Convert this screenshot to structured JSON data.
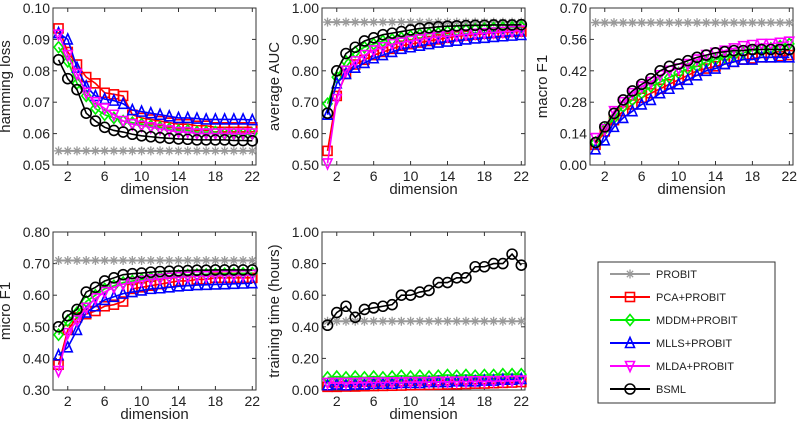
{
  "chart_data": {
    "type": "line",
    "legend": {
      "placement": "bottom-right",
      "entries": [
        {
          "name": "PROBIT",
          "color": "#999999",
          "marker": "asterisk"
        },
        {
          "name": "PCA+PROBIT",
          "color": "#ff0000",
          "marker": "square"
        },
        {
          "name": "MDDM+PROBIT",
          "color": "#00ee00",
          "marker": "diamond"
        },
        {
          "name": "MLLS+PROBIT",
          "color": "#0000ff",
          "marker": "triangle-up"
        },
        {
          "name": "MLDA+PROBIT",
          "color": "#ff00ff",
          "marker": "triangle-down"
        },
        {
          "name": "BSML",
          "color": "#000000",
          "marker": "circle"
        }
      ]
    },
    "x": [
      1,
      2,
      3,
      4,
      5,
      6,
      7,
      8,
      9,
      10,
      11,
      12,
      13,
      14,
      15,
      16,
      17,
      18,
      19,
      20,
      21,
      22
    ],
    "xticks": [
      2,
      6,
      10,
      14,
      18,
      22
    ],
    "xlim": [
      0.4,
      22.4
    ],
    "panels": [
      {
        "xlabel": "dimension",
        "ylabel": "hamming loss",
        "ylim": [
          0.05,
          0.1
        ],
        "yticks": [
          "0.05",
          "0.06",
          "0.07",
          "0.08",
          "0.09",
          "0.10"
        ],
        "series": [
          {
            "name": "PROBIT",
            "values": [
              0.0545,
              0.0545,
              0.0545,
              0.0545,
              0.0545,
              0.0545,
              0.0545,
              0.0545,
              0.0545,
              0.0545,
              0.0545,
              0.0545,
              0.0545,
              0.0545,
              0.0545,
              0.0545,
              0.0545,
              0.0545,
              0.0545,
              0.0545,
              0.0545,
              0.0545
            ]
          },
          {
            "name": "PCA+PROBIT",
            "values": [
              0.0935,
              0.086,
              0.082,
              0.078,
              0.076,
              0.073,
              0.0725,
              0.072,
              0.066,
              0.065,
              0.0645,
              0.064,
              0.0635,
              0.063,
              0.063,
              0.0625,
              0.0625,
              0.062,
              0.062,
              0.062,
              0.062,
              0.062
            ]
          },
          {
            "name": "MDDM+PROBIT",
            "values": [
              0.0875,
              0.083,
              0.076,
              0.072,
              0.068,
              0.066,
              0.065,
              0.064,
              0.0635,
              0.063,
              0.0625,
              0.062,
              0.0615,
              0.061,
              0.061,
              0.0605,
              0.0605,
              0.0605,
              0.06,
              0.06,
              0.06,
              0.06
            ]
          },
          {
            "name": "MLLS+PROBIT",
            "values": [
              0.092,
              0.09,
              0.081,
              0.075,
              0.072,
              0.071,
              0.0705,
              0.0695,
              0.0675,
              0.067,
              0.0665,
              0.066,
              0.0655,
              0.065,
              0.065,
              0.0648,
              0.0645,
              0.0645,
              0.0645,
              0.0645,
              0.0645,
              0.0643
            ]
          },
          {
            "name": "MLDA+PROBIT",
            "values": [
              0.0915,
              0.085,
              0.079,
              0.073,
              0.07,
              0.068,
              0.066,
              0.064,
              0.063,
              0.0625,
              0.062,
              0.0615,
              0.061,
              0.0605,
              0.0605,
              0.06,
              0.06,
              0.06,
              0.06,
              0.06,
              0.06,
              0.06
            ]
          },
          {
            "name": "BSML",
            "values": [
              0.0835,
              0.0775,
              0.074,
              0.0665,
              0.064,
              0.062,
              0.061,
              0.0605,
              0.0598,
              0.0593,
              0.059,
              0.0587,
              0.0585,
              0.0583,
              0.0582,
              0.058,
              0.058,
              0.058,
              0.058,
              0.0578,
              0.0578,
              0.0577
            ]
          }
        ]
      },
      {
        "xlabel": "dimension",
        "ylabel": "average AUC",
        "ylim": [
          0.5,
          1.0
        ],
        "yticks": [
          "0.50",
          "0.60",
          "0.70",
          "0.80",
          "0.90",
          "1.00"
        ],
        "series": [
          {
            "name": "PROBIT",
            "values": [
              0.955,
              0.955,
              0.955,
              0.955,
              0.955,
              0.955,
              0.955,
              0.955,
              0.955,
              0.955,
              0.955,
              0.955,
              0.955,
              0.955,
              0.955,
              0.955,
              0.955,
              0.955,
              0.955,
              0.955,
              0.955,
              0.955
            ]
          },
          {
            "name": "PCA+PROBIT",
            "values": [
              0.545,
              0.72,
              0.79,
              0.82,
              0.835,
              0.85,
              0.86,
              0.87,
              0.88,
              0.885,
              0.89,
              0.895,
              0.9,
              0.905,
              0.91,
              0.912,
              0.915,
              0.918,
              0.92,
              0.922,
              0.924,
              0.925
            ]
          },
          {
            "name": "MDDM+PROBIT",
            "values": [
              0.695,
              0.78,
              0.83,
              0.86,
              0.875,
              0.885,
              0.895,
              0.9,
              0.905,
              0.91,
              0.915,
              0.918,
              0.92,
              0.925,
              0.928,
              0.93,
              0.932,
              0.934,
              0.936,
              0.937,
              0.938,
              0.94
            ]
          },
          {
            "name": "MLLS+PROBIT",
            "values": [
              0.66,
              0.76,
              0.79,
              0.81,
              0.825,
              0.84,
              0.85,
              0.86,
              0.87,
              0.875,
              0.88,
              0.885,
              0.89,
              0.893,
              0.896,
              0.9,
              0.903,
              0.905,
              0.908,
              0.91,
              0.912,
              0.914
            ]
          },
          {
            "name": "MLDA+PROBIT",
            "values": [
              0.505,
              0.71,
              0.8,
              0.83,
              0.85,
              0.865,
              0.875,
              0.885,
              0.89,
              0.895,
              0.9,
              0.905,
              0.908,
              0.91,
              0.913,
              0.916,
              0.918,
              0.92,
              0.922,
              0.924,
              0.926,
              0.928
            ]
          },
          {
            "name": "BSML",
            "values": [
              0.665,
              0.8,
              0.855,
              0.875,
              0.895,
              0.905,
              0.915,
              0.92,
              0.925,
              0.93,
              0.935,
              0.937,
              0.94,
              0.942,
              0.943,
              0.944,
              0.945,
              0.945,
              0.946,
              0.946,
              0.946,
              0.947
            ]
          }
        ]
      },
      {
        "xlabel": "dimension",
        "ylabel": "macro F1",
        "ylim": [
          0.0,
          0.7
        ],
        "yticks": [
          "0.00",
          "0.14",
          "0.28",
          "0.42",
          "0.56",
          "0.70"
        ],
        "series": [
          {
            "name": "PROBIT",
            "values": [
              0.635,
              0.635,
              0.635,
              0.635,
              0.635,
              0.635,
              0.635,
              0.635,
              0.635,
              0.635,
              0.635,
              0.635,
              0.635,
              0.635,
              0.635,
              0.635,
              0.635,
              0.635,
              0.635,
              0.635,
              0.635,
              0.635
            ]
          },
          {
            "name": "PCA+PROBIT",
            "values": [
              0.09,
              0.15,
              0.2,
              0.24,
              0.27,
              0.3,
              0.32,
              0.34,
              0.36,
              0.38,
              0.4,
              0.42,
              0.43,
              0.44,
              0.45,
              0.46,
              0.47,
              0.475,
              0.48,
              0.48,
              0.485,
              0.49
            ]
          },
          {
            "name": "MDDM+PROBIT",
            "values": [
              0.1,
              0.16,
              0.21,
              0.26,
              0.29,
              0.32,
              0.35,
              0.37,
              0.39,
              0.41,
              0.43,
              0.44,
              0.46,
              0.47,
              0.48,
              0.49,
              0.5,
              0.51,
              0.515,
              0.52,
              0.53,
              0.54
            ]
          },
          {
            "name": "MLLS+PROBIT",
            "values": [
              0.07,
              0.11,
              0.17,
              0.21,
              0.24,
              0.27,
              0.29,
              0.32,
              0.34,
              0.36,
              0.38,
              0.4,
              0.42,
              0.43,
              0.45,
              0.46,
              0.47,
              0.47,
              0.48,
              0.48,
              0.48,
              0.48
            ]
          },
          {
            "name": "MLDA+PROBIT",
            "values": [
              0.12,
              0.16,
              0.24,
              0.28,
              0.32,
              0.35,
              0.37,
              0.4,
              0.42,
              0.43,
              0.45,
              0.47,
              0.49,
              0.5,
              0.51,
              0.52,
              0.53,
              0.535,
              0.54,
              0.54,
              0.545,
              0.55
            ]
          },
          {
            "name": "BSML",
            "values": [
              0.1,
              0.17,
              0.23,
              0.29,
              0.33,
              0.36,
              0.385,
              0.42,
              0.44,
              0.45,
              0.465,
              0.48,
              0.49,
              0.5,
              0.505,
              0.51,
              0.51,
              0.515,
              0.515,
              0.515,
              0.515,
              0.515
            ]
          }
        ]
      },
      {
        "xlabel": "dimension",
        "ylabel": "micro F1",
        "ylim": [
          0.3,
          0.8
        ],
        "yticks": [
          "0.30",
          "0.40",
          "0.50",
          "0.60",
          "0.70",
          "0.80"
        ],
        "series": [
          {
            "name": "PROBIT",
            "values": [
              0.71,
              0.71,
              0.71,
              0.71,
              0.71,
              0.71,
              0.71,
              0.71,
              0.71,
              0.71,
              0.71,
              0.71,
              0.71,
              0.71,
              0.71,
              0.71,
              0.71,
              0.71,
              0.71,
              0.71,
              0.71,
              0.71
            ]
          },
          {
            "name": "PCA+PROBIT",
            "values": [
              0.38,
              0.49,
              0.53,
              0.54,
              0.55,
              0.565,
              0.57,
              0.58,
              0.62,
              0.625,
              0.63,
              0.635,
              0.64,
              0.645,
              0.645,
              0.65,
              0.65,
              0.655,
              0.655,
              0.655,
              0.655,
              0.655
            ]
          },
          {
            "name": "MDDM+PROBIT",
            "values": [
              0.475,
              0.52,
              0.545,
              0.58,
              0.6,
              0.62,
              0.63,
              0.64,
              0.645,
              0.65,
              0.655,
              0.658,
              0.66,
              0.662,
              0.664,
              0.665,
              0.666,
              0.667,
              0.668,
              0.668,
              0.669,
              0.67
            ]
          },
          {
            "name": "MLLS+PROBIT",
            "values": [
              0.41,
              0.435,
              0.49,
              0.545,
              0.565,
              0.585,
              0.595,
              0.605,
              0.61,
              0.615,
              0.62,
              0.622,
              0.625,
              0.628,
              0.63,
              0.632,
              0.633,
              0.634,
              0.635,
              0.636,
              0.637,
              0.638
            ]
          },
          {
            "name": "MLDA+PROBIT",
            "values": [
              0.36,
              0.48,
              0.52,
              0.56,
              0.59,
              0.61,
              0.625,
              0.635,
              0.64,
              0.645,
              0.65,
              0.652,
              0.655,
              0.657,
              0.658,
              0.66,
              0.66,
              0.661,
              0.662,
              0.662,
              0.663,
              0.664
            ]
          },
          {
            "name": "BSML",
            "values": [
              0.5,
              0.535,
              0.555,
              0.61,
              0.625,
              0.645,
              0.655,
              0.665,
              0.668,
              0.67,
              0.673,
              0.675,
              0.676,
              0.677,
              0.678,
              0.679,
              0.679,
              0.68,
              0.68,
              0.68,
              0.68,
              0.68
            ]
          }
        ]
      },
      {
        "xlabel": "dimension",
        "ylabel": "training time (hours)",
        "ylim": [
          0.0,
          1.0
        ],
        "yticks": [
          "0.00",
          "0.20",
          "0.40",
          "0.60",
          "0.80",
          "1.00"
        ],
        "series": [
          {
            "name": "PROBIT",
            "values": [
              0.435,
              0.435,
              0.435,
              0.435,
              0.435,
              0.435,
              0.435,
              0.435,
              0.435,
              0.435,
              0.435,
              0.435,
              0.435,
              0.435,
              0.435,
              0.435,
              0.435,
              0.435,
              0.435,
              0.435,
              0.435,
              0.435
            ]
          },
          {
            "name": "PCA+PROBIT",
            "values": [
              0.02,
              0.02,
              0.022,
              0.022,
              0.024,
              0.025,
              0.026,
              0.027,
              0.028,
              0.03,
              0.031,
              0.032,
              0.033,
              0.035,
              0.036,
              0.038,
              0.04,
              0.041,
              0.043,
              0.045,
              0.047,
              0.05
            ]
          },
          {
            "name": "MDDM+PROBIT",
            "values": [
              0.08,
              0.085,
              0.08,
              0.085,
              0.08,
              0.085,
              0.08,
              0.085,
              0.09,
              0.085,
              0.09,
              0.085,
              0.09,
              0.095,
              0.09,
              0.095,
              0.09,
              0.095,
              0.095,
              0.1,
              0.1,
              0.1
            ]
          },
          {
            "name": "MLLS+PROBIT",
            "values": [
              0.03,
              0.035,
              0.03,
              0.035,
              0.035,
              0.04,
              0.04,
              0.04,
              0.045,
              0.045,
              0.045,
              0.05,
              0.05,
              0.05,
              0.055,
              0.055,
              0.055,
              0.06,
              0.06,
              0.065,
              0.065,
              0.07
            ]
          },
          {
            "name": "MLDA+PROBIT",
            "values": [
              0.045,
              0.045,
              0.045,
              0.045,
              0.047,
              0.047,
              0.047,
              0.048,
              0.048,
              0.05,
              0.05,
              0.05,
              0.052,
              0.052,
              0.053,
              0.053,
              0.055,
              0.055,
              0.056,
              0.057,
              0.058,
              0.06
            ]
          },
          {
            "name": "BSML",
            "values": [
              0.41,
              0.49,
              0.53,
              0.46,
              0.51,
              0.52,
              0.53,
              0.54,
              0.6,
              0.6,
              0.62,
              0.63,
              0.68,
              0.68,
              0.71,
              0.71,
              0.78,
              0.78,
              0.8,
              0.8,
              0.86,
              0.79
            ]
          }
        ]
      }
    ]
  }
}
